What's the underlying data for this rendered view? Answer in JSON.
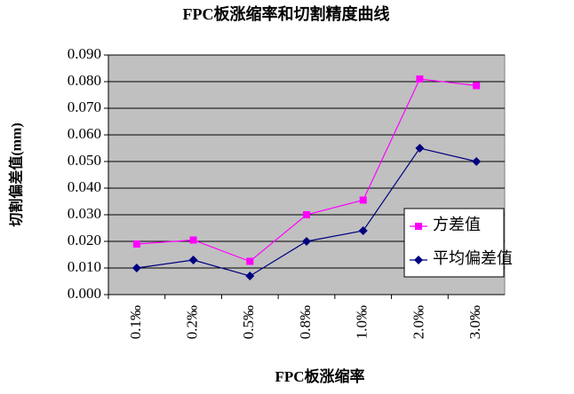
{
  "chart_data": {
    "type": "line",
    "title": "FPC板涨缩率和切割精度曲线",
    "x_label": "FPC板涨缩率",
    "y_label": "切割偏差值(mm)",
    "categories": [
      "0.1‰",
      "0.2‰",
      "0.5‰",
      "0.8‰",
      "1.0‰",
      "2.0‰",
      "3.0‰"
    ],
    "series": [
      {
        "name": "方差值",
        "color": "#ff00ff",
        "marker": "square",
        "values": [
          0.019,
          0.0205,
          0.0125,
          0.03,
          0.0355,
          0.081,
          0.0785
        ]
      },
      {
        "name": "平均偏差值",
        "color": "#000080",
        "marker": "diamond",
        "values": [
          0.01,
          0.013,
          0.007,
          0.02,
          0.024,
          0.055,
          0.05
        ]
      }
    ],
    "ylim": [
      0,
      0.09
    ],
    "yticks": [
      {
        "value": 0,
        "label": "0.000"
      },
      {
        "value": 0.01,
        "label": "0.010"
      },
      {
        "value": 0.02,
        "label": "0.020"
      },
      {
        "value": 0.03,
        "label": "0.030"
      },
      {
        "value": 0.04,
        "label": "0.040"
      },
      {
        "value": 0.05,
        "label": "0.050"
      },
      {
        "value": 0.06,
        "label": "0.060"
      },
      {
        "value": 0.07,
        "label": "0.070"
      },
      {
        "value": 0.08,
        "label": "0.080"
      },
      {
        "value": 0.09,
        "label": "0.090"
      }
    ],
    "grid": true,
    "plot_background": "#c0c0c0"
  }
}
